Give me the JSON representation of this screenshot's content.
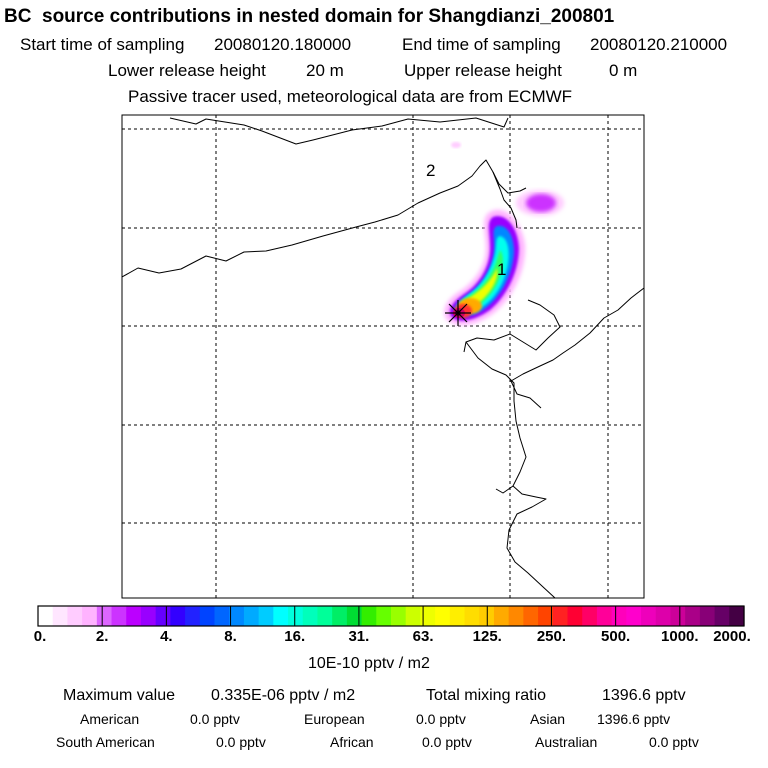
{
  "header": {
    "title": "BC  source contributions in nested domain for Shangdianzi_200801",
    "start_label": "Start time of sampling",
    "start_value": "20080120.180000",
    "end_label": "End time of sampling",
    "end_value": "20080120.210000",
    "lower_label": "Lower release height",
    "lower_value": "20 m",
    "upper_label": "Upper release height",
    "upper_value": "0 m",
    "note": "Passive tracer used, meteorological data are from ECMWF"
  },
  "map": {
    "labels": [
      "2",
      "1"
    ],
    "station_marker": "star-icon",
    "plume_colors": [
      "#ff66ff",
      "#cc33ff",
      "#9900ff",
      "#3399ff",
      "#00ffff",
      "#33ff66",
      "#ccff00",
      "#ffff00",
      "#ffaa00",
      "#ff3333",
      "#cc0066",
      "#660033"
    ]
  },
  "colorbar": {
    "ticks": [
      "0.",
      "2.",
      "4.",
      "8.",
      "16.",
      "31.",
      "63.",
      "125.",
      "250.",
      "500.",
      "1000.",
      "2000."
    ],
    "units": "10E-10 pptv / m2",
    "colors": [
      "#ffffff",
      "#ffe6ff",
      "#ffccff",
      "#ffb3ff",
      "#dd66ff",
      "#cc33ff",
      "#bb00ff",
      "#9900ff",
      "#6600ff",
      "#3300ff",
      "#2222ff",
      "#0044ff",
      "#0066ff",
      "#0088ff",
      "#00aaff",
      "#00ccff",
      "#00ffff",
      "#00ffdd",
      "#00ffbb",
      "#00ff99",
      "#00ee66",
      "#00dd33",
      "#33ee00",
      "#66ff00",
      "#99ff00",
      "#ccff00",
      "#eeff00",
      "#ffff00",
      "#ffee00",
      "#ffdd00",
      "#ffcc00",
      "#ffaa00",
      "#ff8800",
      "#ff6600",
      "#ff4400",
      "#ff2222",
      "#ff0033",
      "#ff0066",
      "#ff0099",
      "#ff00bb",
      "#ff00cc",
      "#ee00bb",
      "#dd00aa",
      "#cc0099",
      "#aa0088",
      "#880077",
      "#660066",
      "#440044"
    ]
  },
  "summary": {
    "max_label": "Maximum value",
    "max_value": "0.335E-06 pptv / m2",
    "total_label": "Total mixing ratio",
    "total_value": "1396.6 pptv",
    "regions": [
      {
        "name": "American",
        "value": "0.0 pptv"
      },
      {
        "name": "European",
        "value": "0.0 pptv"
      },
      {
        "name": "Asian",
        "value": "1396.6 pptv"
      },
      {
        "name": "South American",
        "value": "0.0 pptv"
      },
      {
        "name": "African",
        "value": "0.0 pptv"
      },
      {
        "name": "Australian",
        "value": "0.0 pptv"
      }
    ]
  }
}
